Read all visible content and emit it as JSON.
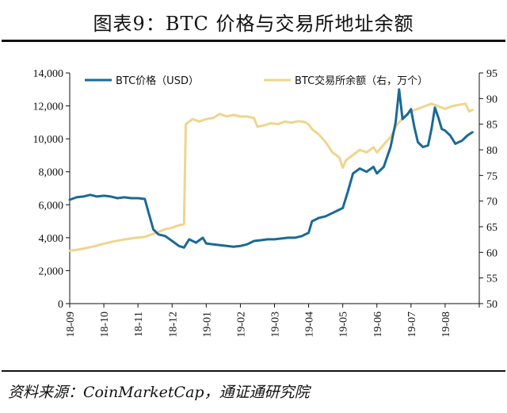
{
  "header": {
    "title": "图表9：BTC 价格与交易所地址余额"
  },
  "footer": {
    "source": "资料来源：CoinMarketCap，通证通研究院"
  },
  "chart_data": {
    "type": "line",
    "title": "图表9：BTC 价格与交易所地址余额",
    "x_tick_labels": [
      "18-09",
      "18-10",
      "18-11",
      "18-12",
      "19-01",
      "19-02",
      "19-03",
      "19-04",
      "19-05",
      "19-06",
      "19-07",
      "19-08"
    ],
    "y_left": {
      "ylim": [
        0,
        14000
      ],
      "ticks": [
        0,
        2000,
        4000,
        6000,
        8000,
        10000,
        12000,
        14000
      ],
      "tick_labels": [
        "0",
        "2,000",
        "4,000",
        "6,000",
        "8,000",
        "10,000",
        "12,000",
        "14,000"
      ]
    },
    "y_right": {
      "ylim": [
        50,
        95
      ],
      "ticks": [
        50,
        55,
        60,
        65,
        70,
        75,
        80,
        85,
        90,
        95
      ],
      "tick_labels": [
        "50",
        "55",
        "60",
        "65",
        "70",
        "75",
        "80",
        "85",
        "90",
        "95"
      ]
    },
    "grid": false,
    "legend_position": "top",
    "series": [
      {
        "name": "BTC价格（USD）",
        "axis": "left",
        "color": "#1a6a96",
        "points": [
          [
            0,
            6300
          ],
          [
            0.2,
            6450
          ],
          [
            0.4,
            6500
          ],
          [
            0.6,
            6600
          ],
          [
            0.8,
            6500
          ],
          [
            1.0,
            6550
          ],
          [
            1.2,
            6500
          ],
          [
            1.4,
            6400
          ],
          [
            1.6,
            6450
          ],
          [
            1.8,
            6400
          ],
          [
            2.0,
            6400
          ],
          [
            2.2,
            6350
          ],
          [
            2.3,
            5600
          ],
          [
            2.45,
            4500
          ],
          [
            2.6,
            4200
          ],
          [
            2.8,
            4100
          ],
          [
            3.0,
            3800
          ],
          [
            3.2,
            3500
          ],
          [
            3.35,
            3400
          ],
          [
            3.5,
            3900
          ],
          [
            3.7,
            3700
          ],
          [
            3.9,
            4000
          ],
          [
            4.0,
            3650
          ],
          [
            4.2,
            3600
          ],
          [
            4.4,
            3550
          ],
          [
            4.6,
            3500
          ],
          [
            4.8,
            3450
          ],
          [
            5.0,
            3500
          ],
          [
            5.2,
            3600
          ],
          [
            5.4,
            3800
          ],
          [
            5.6,
            3850
          ],
          [
            5.8,
            3900
          ],
          [
            6.0,
            3900
          ],
          [
            6.2,
            3950
          ],
          [
            6.4,
            4000
          ],
          [
            6.6,
            4000
          ],
          [
            6.8,
            4100
          ],
          [
            7.0,
            4300
          ],
          [
            7.1,
            5000
          ],
          [
            7.3,
            5200
          ],
          [
            7.5,
            5300
          ],
          [
            7.7,
            5500
          ],
          [
            7.9,
            5700
          ],
          [
            8.0,
            5800
          ],
          [
            8.15,
            6800
          ],
          [
            8.3,
            7900
          ],
          [
            8.5,
            8200
          ],
          [
            8.7,
            8000
          ],
          [
            8.9,
            8300
          ],
          [
            9.0,
            7900
          ],
          [
            9.2,
            8300
          ],
          [
            9.4,
            9500
          ],
          [
            9.55,
            11000
          ],
          [
            9.65,
            13000
          ],
          [
            9.75,
            11200
          ],
          [
            9.9,
            11500
          ],
          [
            10.0,
            11800
          ],
          [
            10.1,
            10700
          ],
          [
            10.2,
            9800
          ],
          [
            10.35,
            9500
          ],
          [
            10.5,
            9600
          ],
          [
            10.6,
            10600
          ],
          [
            10.7,
            11900
          ],
          [
            10.8,
            11300
          ],
          [
            10.9,
            10600
          ],
          [
            11.0,
            10500
          ],
          [
            11.15,
            10200
          ],
          [
            11.3,
            9700
          ],
          [
            11.5,
            9900
          ],
          [
            11.65,
            10200
          ],
          [
            11.8,
            10400
          ]
        ]
      },
      {
        "name": "BTC交易所余额（右，万个）",
        "axis": "right",
        "color": "#efd58c",
        "points": [
          [
            0,
            60.3
          ],
          [
            0.3,
            60.6
          ],
          [
            0.6,
            61.0
          ],
          [
            0.9,
            61.5
          ],
          [
            1.2,
            62.0
          ],
          [
            1.5,
            62.4
          ],
          [
            1.8,
            62.7
          ],
          [
            2.0,
            62.9
          ],
          [
            2.2,
            63.0
          ],
          [
            2.4,
            63.5
          ],
          [
            2.6,
            64.0
          ],
          [
            2.8,
            64.5
          ],
          [
            3.0,
            64.8
          ],
          [
            3.2,
            65.3
          ],
          [
            3.35,
            65.5
          ],
          [
            3.4,
            85.0
          ],
          [
            3.6,
            86.0
          ],
          [
            3.8,
            85.5
          ],
          [
            4.0,
            86.0
          ],
          [
            4.2,
            86.2
          ],
          [
            4.4,
            87.0
          ],
          [
            4.6,
            86.5
          ],
          [
            4.8,
            86.8
          ],
          [
            5.0,
            86.5
          ],
          [
            5.2,
            86.5
          ],
          [
            5.4,
            86.2
          ],
          [
            5.5,
            84.5
          ],
          [
            5.7,
            84.8
          ],
          [
            5.9,
            85.2
          ],
          [
            6.1,
            85.0
          ],
          [
            6.3,
            85.5
          ],
          [
            6.5,
            85.3
          ],
          [
            6.7,
            85.6
          ],
          [
            6.9,
            85.4
          ],
          [
            7.0,
            85.0
          ],
          [
            7.1,
            84.0
          ],
          [
            7.3,
            83.0
          ],
          [
            7.5,
            81.5
          ],
          [
            7.7,
            79.5
          ],
          [
            7.9,
            78.5
          ],
          [
            8.0,
            76.5
          ],
          [
            8.1,
            78.0
          ],
          [
            8.3,
            79.0
          ],
          [
            8.5,
            80.0
          ],
          [
            8.7,
            79.5
          ],
          [
            8.9,
            80.5
          ],
          [
            9.0,
            79.5
          ],
          [
            9.2,
            81.0
          ],
          [
            9.4,
            82.5
          ],
          [
            9.6,
            85.0
          ],
          [
            9.8,
            86.5
          ],
          [
            10.0,
            87.5
          ],
          [
            10.2,
            88.0
          ],
          [
            10.4,
            88.5
          ],
          [
            10.6,
            89.0
          ],
          [
            10.8,
            88.5
          ],
          [
            11.0,
            88.0
          ],
          [
            11.2,
            88.5
          ],
          [
            11.4,
            88.8
          ],
          [
            11.6,
            89.0
          ],
          [
            11.7,
            87.5
          ],
          [
            11.8,
            87.8
          ]
        ]
      }
    ]
  }
}
